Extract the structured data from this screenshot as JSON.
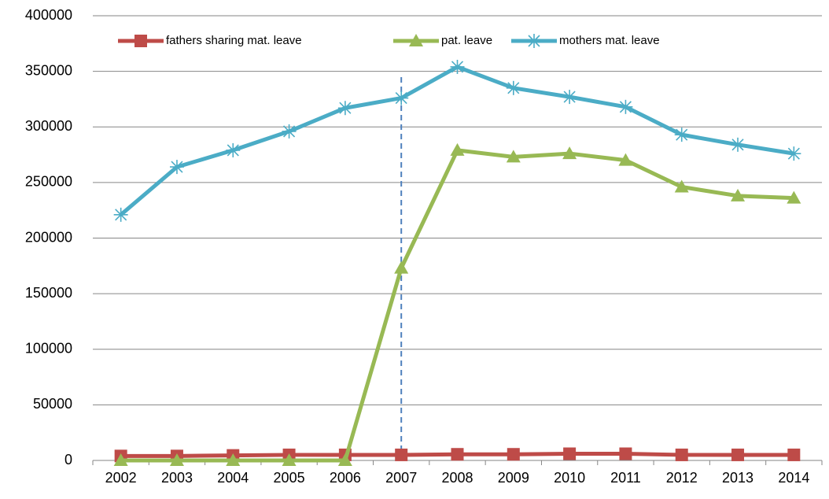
{
  "chart_data": {
    "type": "line",
    "categories": [
      "2002",
      "2003",
      "2004",
      "2005",
      "2006",
      "2007",
      "2008",
      "2009",
      "2010",
      "2011",
      "2012",
      "2013",
      "2014"
    ],
    "series": [
      {
        "name": "fathers sharing mat. leave",
        "color": "#be4b48",
        "marker": "square",
        "values": [
          4000,
          4000,
          4500,
          5000,
          5000,
          5000,
          5500,
          5500,
          6000,
          6000,
          5000,
          5000,
          5000
        ]
      },
      {
        "name": "pat. leave",
        "color": "#98b954",
        "marker": "triangle",
        "values": [
          0,
          0,
          0,
          0,
          0,
          173000,
          279000,
          273000,
          276000,
          270000,
          246000,
          238000,
          236000
        ]
      },
      {
        "name": "mothers mat. leave",
        "color": "#4bacc6",
        "marker": "asterisk",
        "values": [
          221000,
          264000,
          279000,
          296000,
          317000,
          326000,
          354000,
          335000,
          327000,
          318000,
          293000,
          284000,
          276000
        ]
      }
    ],
    "ylim": [
      0,
      400000
    ],
    "yticks": [
      0,
      50000,
      100000,
      150000,
      200000,
      250000,
      300000,
      350000,
      400000
    ],
    "grid": true,
    "legend": "top",
    "vline": {
      "category": "2007",
      "color": "#4f81bd",
      "style": "dashed"
    }
  }
}
